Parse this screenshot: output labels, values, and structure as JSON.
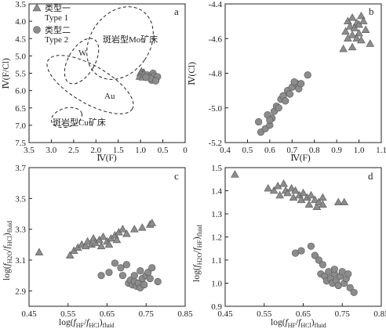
{
  "series_legend": {
    "type1_line1": "类型一",
    "type1_line2": "Type 1",
    "type2_line1": "类型二",
    "type2_line2": "Type 2"
  },
  "colors": {
    "triangle": "#8c8c8c",
    "circle": "#8c8c8c",
    "axis": "#222222"
  },
  "chart_data": [
    {
      "panel": "a",
      "type": "scatter",
      "xlabel": "Ⅳ(F)",
      "ylabel": "Ⅳ(F/Cl)",
      "xlim": [
        3.5,
        0
      ],
      "ylim": [
        7.5,
        3.5
      ],
      "xticks": [
        "3.5",
        "3.0",
        "2.5",
        "2.0",
        "1.5",
        "1.0",
        "0.5",
        "0"
      ],
      "yticks": [
        "3.5",
        "4.0",
        "4.5",
        "5.0",
        "5.5",
        "6.0",
        "6.5",
        "7.0",
        "7.5"
      ],
      "legend": "top-left",
      "regions": [
        {
          "label": "斑岩型Mo矿床"
        },
        {
          "label": "W"
        },
        {
          "label": "Au"
        },
        {
          "label": "斑岩型Cu矿床"
        }
      ],
      "series": [
        {
          "name": "Type 1",
          "marker": "triangle",
          "points": [
            [
              0.98,
              5.45
            ],
            [
              0.93,
              5.48
            ],
            [
              0.96,
              5.55
            ],
            [
              1.0,
              5.5
            ],
            [
              0.9,
              5.6
            ],
            [
              1.02,
              5.6
            ],
            [
              0.95,
              5.62
            ],
            [
              0.92,
              5.52
            ]
          ]
        },
        {
          "name": "Type 2",
          "marker": "circle",
          "points": [
            [
              0.85,
              5.55
            ],
            [
              0.8,
              5.6
            ],
            [
              0.72,
              5.5
            ],
            [
              0.68,
              5.62
            ],
            [
              0.75,
              5.7
            ],
            [
              0.65,
              5.65
            ],
            [
              0.7,
              5.58
            ],
            [
              0.78,
              5.65
            ],
            [
              0.62,
              5.6
            ],
            [
              0.66,
              5.72
            ],
            [
              0.88,
              5.62
            ]
          ]
        }
      ]
    },
    {
      "panel": "b",
      "type": "scatter",
      "xlabel": "Ⅳ(F)",
      "ylabel": "Ⅳ(Cl)",
      "xlim": [
        0.4,
        1.1
      ],
      "ylim": [
        -5.2,
        -4.4
      ],
      "xticks": [
        "0.4",
        "0.5",
        "0.6",
        "0.7",
        "0.8",
        "0.9",
        "1.0",
        "1.1"
      ],
      "yticks": [
        "-4.4",
        "-4.6",
        "-4.8",
        "-5.0",
        "-5.2"
      ],
      "series": [
        {
          "name": "Type 1",
          "marker": "triangle",
          "points": [
            [
              0.95,
              -4.5
            ],
            [
              0.97,
              -4.48
            ],
            [
              0.99,
              -4.51
            ],
            [
              1.01,
              -4.47
            ],
            [
              0.96,
              -4.53
            ],
            [
              0.98,
              -4.54
            ],
            [
              1.0,
              -4.52
            ],
            [
              1.02,
              -4.5
            ],
            [
              0.94,
              -4.56
            ],
            [
              0.97,
              -4.58
            ],
            [
              1.0,
              -4.57
            ],
            [
              1.03,
              -4.55
            ],
            [
              0.95,
              -4.6
            ],
            [
              0.99,
              -4.6
            ],
            [
              1.01,
              -4.61
            ],
            [
              0.93,
              -4.66
            ],
            [
              0.97,
              -4.65
            ],
            [
              1.05,
              -4.63
            ]
          ]
        },
        {
          "name": "Type 2",
          "marker": "circle",
          "points": [
            [
              0.56,
              -5.14
            ],
            [
              0.58,
              -5.12
            ],
            [
              0.6,
              -5.1
            ],
            [
              0.61,
              -5.06
            ],
            [
              0.59,
              -5.04
            ],
            [
              0.62,
              -5.02
            ],
            [
              0.6,
              -5.07
            ],
            [
              0.55,
              -5.08
            ],
            [
              0.63,
              -4.99
            ],
            [
              0.65,
              -4.95
            ],
            [
              0.66,
              -4.93
            ],
            [
              0.68,
              -4.9
            ],
            [
              0.7,
              -4.88
            ],
            [
              0.72,
              -4.86
            ],
            [
              0.71,
              -4.85
            ],
            [
              0.73,
              -4.89
            ],
            [
              0.74,
              -4.86
            ],
            [
              0.77,
              -4.81
            ],
            [
              0.67,
              -4.96
            ],
            [
              0.64,
              -5.0
            ],
            [
              0.69,
              -4.92
            ]
          ]
        }
      ]
    },
    {
      "panel": "c",
      "type": "scatter",
      "xlabel": "log(fH2O/fHCl)fluid",
      "ylabel": "log(fH2O/fHF)fluid",
      "xlim": [
        0.45,
        0.85
      ],
      "ylim": [
        2.8,
        3.7
      ],
      "xticks": [
        "0.45",
        "0.55",
        "0.65",
        "0.75",
        "0.85"
      ],
      "yticks": [
        "2.9",
        "3.1",
        "3.3",
        "3.5",
        "3.7"
      ],
      "series": [
        {
          "name": "Type 1",
          "marker": "triangle",
          "points": [
            [
              0.476,
              3.15
            ],
            [
              0.555,
              3.13
            ],
            [
              0.565,
              3.16
            ],
            [
              0.575,
              3.18
            ],
            [
              0.585,
              3.2
            ],
            [
              0.595,
              3.19
            ],
            [
              0.6,
              3.22
            ],
            [
              0.61,
              3.2
            ],
            [
              0.615,
              3.24
            ],
            [
              0.62,
              3.21
            ],
            [
              0.63,
              3.23
            ],
            [
              0.635,
              3.19
            ],
            [
              0.64,
              3.25
            ],
            [
              0.65,
              3.22
            ],
            [
              0.655,
              3.2
            ],
            [
              0.66,
              3.24
            ],
            [
              0.67,
              3.26
            ],
            [
              0.675,
              3.23
            ],
            [
              0.68,
              3.28
            ],
            [
              0.69,
              3.3
            ],
            [
              0.7,
              3.27
            ],
            [
              0.72,
              3.3
            ],
            [
              0.74,
              3.31
            ],
            [
              0.76,
              3.33
            ],
            [
              0.765,
              3.34
            ]
          ]
        },
        {
          "name": "Type 2",
          "marker": "circle",
          "points": [
            [
              0.635,
              3.0
            ],
            [
              0.655,
              3.02
            ],
            [
              0.67,
              3.08
            ],
            [
              0.685,
              3.05
            ],
            [
              0.7,
              3.07
            ],
            [
              0.69,
              3.0
            ],
            [
              0.705,
              2.95
            ],
            [
              0.71,
              2.97
            ],
            [
              0.715,
              2.94
            ],
            [
              0.72,
              2.96
            ],
            [
              0.725,
              2.93
            ],
            [
              0.73,
              2.95
            ],
            [
              0.735,
              2.92
            ],
            [
              0.74,
              2.98
            ],
            [
              0.745,
              2.94
            ],
            [
              0.75,
              3.0
            ],
            [
              0.755,
              3.02
            ],
            [
              0.76,
              2.98
            ],
            [
              0.765,
              3.05
            ],
            [
              0.78,
              2.96
            ],
            [
              0.735,
              3.03
            ],
            [
              0.72,
              3.0
            ]
          ]
        }
      ]
    },
    {
      "panel": "d",
      "type": "scatter",
      "xlabel": "log(fH2O/fHF)fluid",
      "ylabel": "log(fHCl/fHF)fluid",
      "xlim": [
        0.45,
        0.85
      ],
      "ylim": [
        0.9,
        1.5
      ],
      "xticks": [
        "0.45",
        "0.55",
        "0.65",
        "0.75",
        "0.85"
      ],
      "yticks": [
        "0.9",
        "1.0",
        "1.1",
        "1.2",
        "1.3",
        "1.4",
        "1.5"
      ],
      "series": [
        {
          "name": "Type 1",
          "marker": "triangle",
          "points": [
            [
              0.475,
              1.47
            ],
            [
              0.56,
              1.41
            ],
            [
              0.575,
              1.4
            ],
            [
              0.585,
              1.42
            ],
            [
              0.59,
              1.38
            ],
            [
              0.6,
              1.43
            ],
            [
              0.605,
              1.4
            ],
            [
              0.61,
              1.39
            ],
            [
              0.62,
              1.41
            ],
            [
              0.625,
              1.37
            ],
            [
              0.63,
              1.4
            ],
            [
              0.64,
              1.38
            ],
            [
              0.645,
              1.36
            ],
            [
              0.65,
              1.39
            ],
            [
              0.66,
              1.37
            ],
            [
              0.665,
              1.34
            ],
            [
              0.67,
              1.38
            ],
            [
              0.68,
              1.36
            ],
            [
              0.685,
              1.33
            ],
            [
              0.69,
              1.35
            ],
            [
              0.7,
              1.34
            ],
            [
              0.7,
              1.37
            ],
            [
              0.74,
              1.35
            ],
            [
              0.755,
              1.35
            ]
          ]
        },
        {
          "name": "Type 2",
          "marker": "circle",
          "points": [
            [
              0.63,
              1.13
            ],
            [
              0.645,
              1.14
            ],
            [
              0.67,
              1.16
            ],
            [
              0.68,
              1.12
            ],
            [
              0.69,
              1.1
            ],
            [
              0.7,
              1.08
            ],
            [
              0.695,
              1.04
            ],
            [
              0.705,
              1.03
            ],
            [
              0.71,
              1.01
            ],
            [
              0.715,
              1.05
            ],
            [
              0.72,
              1.02
            ],
            [
              0.725,
              1.0
            ],
            [
              0.73,
              1.04
            ],
            [
              0.735,
              1.01
            ],
            [
              0.74,
              0.99
            ],
            [
              0.745,
              1.03
            ],
            [
              0.75,
              1.05
            ],
            [
              0.755,
              1.0
            ],
            [
              0.76,
              1.02
            ],
            [
              0.765,
              1.04
            ],
            [
              0.77,
              0.98
            ],
            [
              0.78,
              0.96
            ],
            [
              0.73,
              1.06
            ]
          ]
        }
      ]
    }
  ]
}
